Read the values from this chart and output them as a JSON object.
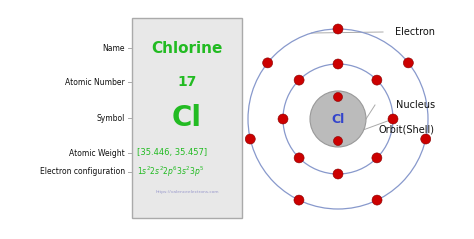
{
  "bg_color": "#ffffff",
  "box_bg": "#e8e8e8",
  "box_border": "#aaaaaa",
  "element_name": "Chlorine",
  "atomic_number": "17",
  "symbol": "Cl",
  "atomic_weight": "[35.446, 35.457]",
  "website": "https://valenceelectrons.com",
  "green_color": "#22bb22",
  "red_color": "#cc0000",
  "blue_color": "#3344cc",
  "label_color": "#111111",
  "orbit_color": "#8899cc",
  "nucleus_fill": "#bbbbbb",
  "nucleus_text_color": "#3344cc",
  "left_labels": [
    "Name",
    "Atomic Number",
    "Symbol",
    "Atomic Weight",
    "Electron configuration"
  ],
  "right_labels": [
    "Electron",
    "Nucleus",
    "Orbit(Shell)"
  ],
  "shell1_electrons": 2,
  "shell2_electrons": 8,
  "shell3_electrons": 7
}
